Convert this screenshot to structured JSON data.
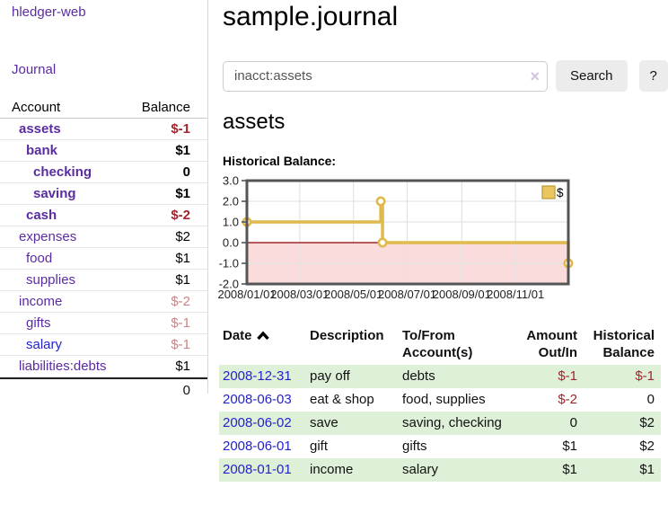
{
  "colors": {
    "link-purple": "#5a2ca0",
    "link-blue": "#2323cc",
    "negative-strong": "#a0262e",
    "negative-muted": "#c88585",
    "row-green": "#dff0d8",
    "button-gray": "#ececec",
    "chart-line-gold": "#e0ba4c",
    "chart-pink": "#fbdcdc",
    "chart-zero-red": "#8b0000",
    "chart-border": "#555555",
    "chart-grid": "#e3e3e3"
  },
  "app": {
    "brand": "hledger-web"
  },
  "sidebar": {
    "nav_journal": "Journal",
    "accounts_table": {
      "headers": [
        "Account",
        "Balance"
      ],
      "rows": [
        {
          "name": "assets",
          "indent": 1,
          "bold": true,
          "balance": "$-1",
          "balance_style": "neg-strong"
        },
        {
          "name": "bank",
          "indent": 2,
          "bold": true,
          "balance": "$1",
          "balance_style": "pos"
        },
        {
          "name": "checking",
          "indent": 3,
          "bold": true,
          "balance": "0",
          "balance_style": "pos"
        },
        {
          "name": "saving",
          "indent": 3,
          "bold": true,
          "balance": "$1",
          "balance_style": "pos"
        },
        {
          "name": "cash",
          "indent": 2,
          "bold": true,
          "balance": "$-2",
          "balance_style": "neg-strong"
        },
        {
          "name": "expenses",
          "indent": 1,
          "bold": false,
          "balance": "$2",
          "balance_style": "pos"
        },
        {
          "name": "food",
          "indent": 2,
          "bold": false,
          "balance": "$1",
          "balance_style": "pos"
        },
        {
          "name": "supplies",
          "indent": 2,
          "bold": false,
          "balance": "$1",
          "balance_style": "pos"
        },
        {
          "name": "income",
          "indent": 1,
          "bold": false,
          "balance": "$-2",
          "balance_style": "neg-muted"
        },
        {
          "name": "gifts",
          "indent": 2,
          "bold": false,
          "balance": "$-1",
          "balance_style": "neg-muted"
        },
        {
          "name": "salary",
          "indent": 2,
          "bold": false,
          "balance": "$-1",
          "balance_style": "neg-muted",
          "link": "blue"
        },
        {
          "name": "liabilities:debts",
          "indent": 1,
          "bold": false,
          "balance": "$1",
          "balance_style": "pos"
        }
      ],
      "total": "0"
    }
  },
  "header": {
    "title": "sample.journal"
  },
  "search": {
    "value": "inacct:assets",
    "clear_icon": "×",
    "button_label": "Search",
    "help_label": "?"
  },
  "account_page": {
    "title": "assets",
    "chart_heading": "Historical Balance:"
  },
  "chart_data": {
    "type": "line",
    "step": true,
    "title": "Historical Balance",
    "x": [
      "2008-01-01",
      "2008-06-01",
      "2008-06-03",
      "2008-12-31"
    ],
    "series": [
      {
        "name": "$",
        "values": [
          1,
          2,
          0,
          -1
        ]
      }
    ],
    "x_range": [
      "2008-01-01",
      "2008-12-31"
    ],
    "ylim": [
      -2,
      3
    ],
    "ytick_labels": [
      "3.0",
      "2.0",
      "1.0",
      "0.0",
      "-1.0",
      "-2.0"
    ],
    "ytick_values": [
      3,
      2,
      1,
      0,
      -1,
      -2
    ],
    "xtick_labels": [
      "2008/01/01",
      "2008/03/01",
      "2008/05/01",
      "2008/07/01",
      "2008/09/01",
      "2008/11/01"
    ],
    "xtick_dates": [
      "2008-01-01",
      "2008-03-01",
      "2008-05-01",
      "2008-07-01",
      "2008-09-01",
      "2008-11-01"
    ],
    "legend": {
      "label": "$",
      "position": "top-right"
    },
    "grid": true,
    "negative_region_shaded": true,
    "zero_line": true
  },
  "register": {
    "headers": [
      {
        "l1": "Date",
        "sorted": "asc"
      },
      {
        "l1": "Description"
      },
      {
        "l1": "To/From",
        "l2": "Account(s)"
      },
      {
        "l1": "Amount",
        "l2": "Out/In",
        "align": "right"
      },
      {
        "l1": "Historical",
        "l2": "Balance",
        "align": "right"
      }
    ],
    "rows": [
      {
        "date": "2008-12-31",
        "description": "pay off",
        "accounts": "debts",
        "amount": "$-1",
        "amount_neg": true,
        "balance": "$-1",
        "balance_neg": true,
        "shaded": true
      },
      {
        "date": "2008-06-03",
        "description": "eat & shop",
        "accounts": "food, supplies",
        "amount": "$-2",
        "amount_neg": true,
        "balance": "0",
        "balance_neg": false,
        "shaded": false
      },
      {
        "date": "2008-06-02",
        "description": "save",
        "accounts": "saving, checking",
        "amount": "0",
        "amount_neg": false,
        "balance": "$2",
        "balance_neg": false,
        "shaded": true
      },
      {
        "date": "2008-06-01",
        "description": "gift",
        "accounts": "gifts",
        "amount": "$1",
        "amount_neg": false,
        "balance": "$2",
        "balance_neg": false,
        "shaded": false
      },
      {
        "date": "2008-01-01",
        "description": "income",
        "accounts": "salary",
        "amount": "$1",
        "amount_neg": false,
        "balance": "$1",
        "balance_neg": false,
        "shaded": true
      }
    ]
  }
}
